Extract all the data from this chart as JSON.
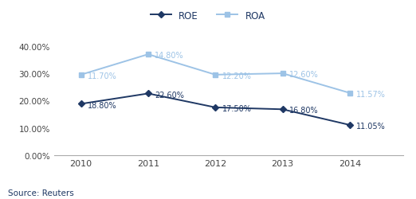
{
  "years": [
    2010,
    2011,
    2012,
    2013,
    2014
  ],
  "ROE_plot": [
    0.188,
    0.226,
    0.175,
    0.168,
    0.1105
  ],
  "ROA_plot": [
    0.295,
    0.37,
    0.295,
    0.3,
    0.228
  ],
  "ROE_labels": [
    "18.80%",
    "22.60%",
    "17.50%",
    "16.80%",
    "11.05%"
  ],
  "ROA_labels": [
    "11.70%",
    "14.80%",
    "12.20%",
    "12.60%",
    "11.57%"
  ],
  "ROE_color": "#1F3864",
  "ROA_color": "#9DC3E6",
  "ylim": [
    0,
    0.44
  ],
  "yticks": [
    0.0,
    0.1,
    0.2,
    0.3,
    0.4
  ],
  "ytick_labels": [
    "0.00%",
    "10.00%",
    "20.00%",
    "30.00%",
    "40.00%"
  ],
  "source_text": "Source: Reuters",
  "legend_ROE": "ROE",
  "legend_ROA": "ROA",
  "background_color": "#FFFFFF",
  "xlim_left": 2009.6,
  "xlim_right": 2014.8
}
